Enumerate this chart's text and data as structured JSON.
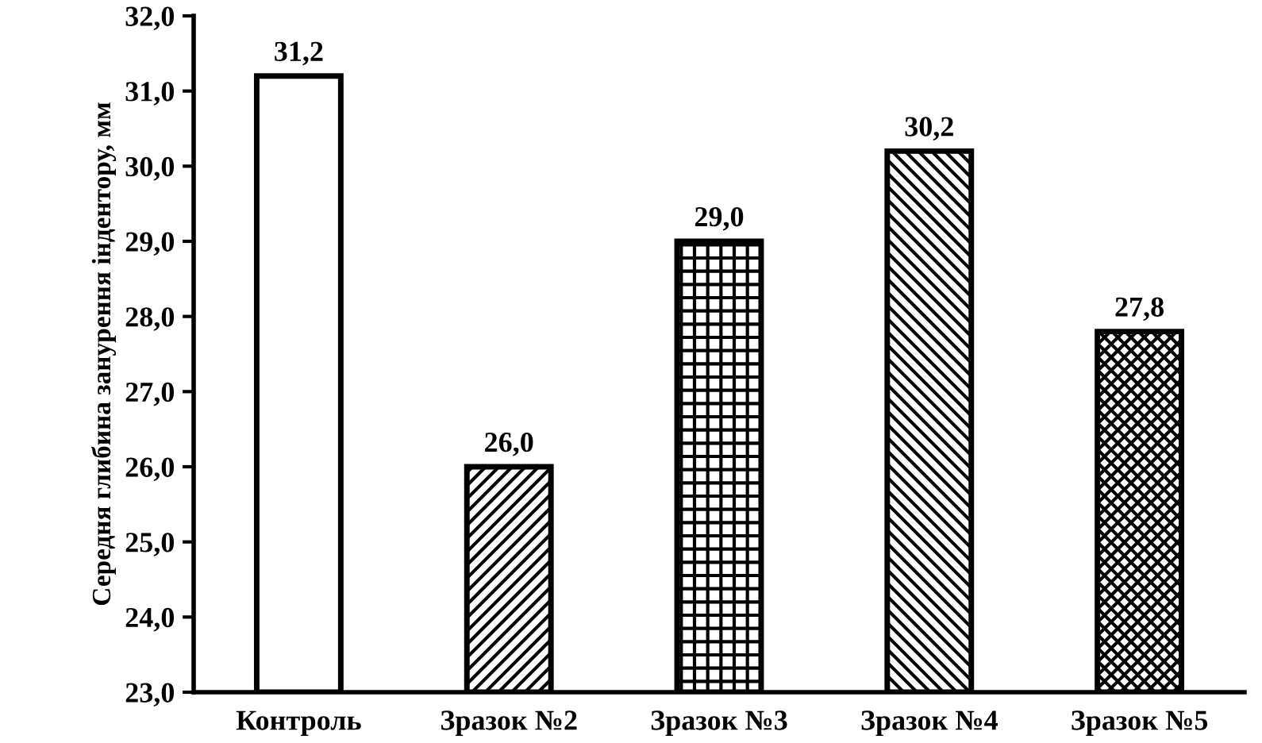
{
  "chart_data": {
    "type": "bar",
    "ylabel": "Середня глибина занурення індентору, мм",
    "categories": [
      "Контроль",
      "Зразок №2",
      "Зразок №3",
      "Зразок №4",
      "Зразок №5"
    ],
    "values": [
      31.2,
      26.0,
      29.0,
      30.2,
      27.8
    ],
    "value_labels": [
      "31,2",
      "26,0",
      "29,0",
      "30,2",
      "27,8"
    ],
    "colors": [
      "#ffffff",
      "#000000",
      "#000000",
      "#000000",
      "#000000"
    ],
    "ylim": [
      23,
      32
    ],
    "yticks": [
      {
        "value": 23,
        "label": "23,0"
      },
      {
        "value": 24,
        "label": "24,0"
      },
      {
        "value": 25,
        "label": "25,0"
      },
      {
        "value": 26,
        "label": "26,0"
      },
      {
        "value": 27,
        "label": "27,0"
      },
      {
        "value": 28,
        "label": "28,0"
      },
      {
        "value": 29,
        "label": "29,0"
      },
      {
        "value": 30,
        "label": "30,0"
      },
      {
        "value": 31,
        "label": "31,0"
      },
      {
        "value": 32,
        "label": "32,0"
      }
    ],
    "grid": false,
    "legend": false
  }
}
